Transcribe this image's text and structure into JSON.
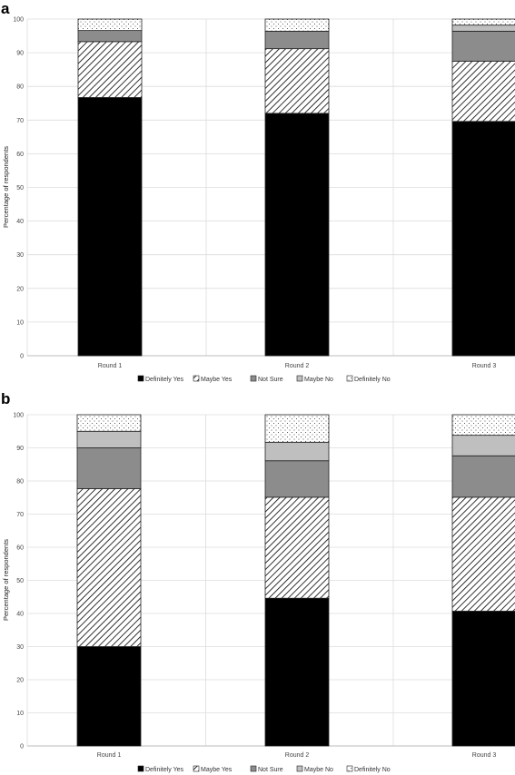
{
  "colors": {
    "definitely_yes": "#000000",
    "maybe_yes": "hatch",
    "not_sure": "#8c8c8c",
    "maybe_no": "#bfbfbf",
    "definitely_no": "dots"
  },
  "chart_data": [
    {
      "panel": "a",
      "type": "bar",
      "stacked": true,
      "categories": [
        "Round 1",
        "Round 2",
        "Round 3"
      ],
      "ylabel": "Percentage of respondents",
      "ylim": [
        0,
        100
      ],
      "yticks": [
        0,
        10,
        20,
        30,
        40,
        50,
        60,
        70,
        80,
        90,
        100
      ],
      "grid": true,
      "legend_position": "bottom",
      "series": [
        {
          "name": "Definitely Yes",
          "key": "definitely_yes",
          "values": [
            76.7,
            72.0,
            69.6
          ]
        },
        {
          "name": "Maybe Yes",
          "key": "maybe_yes",
          "values": [
            16.6,
            19.2,
            17.9
          ]
        },
        {
          "name": "Not Sure",
          "key": "not_sure",
          "values": [
            3.3,
            5.2,
            8.9
          ]
        },
        {
          "name": "Maybe No",
          "key": "maybe_no",
          "values": [
            0.0,
            0.0,
            1.8
          ]
        },
        {
          "name": "Definitely No",
          "key": "definitely_no",
          "values": [
            3.4,
            3.6,
            1.8
          ]
        }
      ]
    },
    {
      "panel": "b",
      "type": "bar",
      "stacked": true,
      "categories": [
        "Round 1",
        "Round 2",
        "Round 3"
      ],
      "ylabel": "Percentage of respondents",
      "ylim": [
        0,
        100
      ],
      "yticks": [
        0,
        10,
        20,
        30,
        40,
        50,
        60,
        70,
        80,
        90,
        100
      ],
      "grid": true,
      "legend_position": "bottom",
      "series": [
        {
          "name": "Definitely Yes",
          "key": "definitely_yes",
          "values": [
            30.0,
            44.6,
            40.7
          ]
        },
        {
          "name": "Maybe Yes",
          "key": "maybe_yes",
          "values": [
            47.7,
            30.5,
            34.4
          ]
        },
        {
          "name": "Not Sure",
          "key": "not_sure",
          "values": [
            12.3,
            11.0,
            12.5
          ]
        },
        {
          "name": "Maybe No",
          "key": "maybe_no",
          "values": [
            5.0,
            5.6,
            6.2
          ]
        },
        {
          "name": "Definitely No",
          "key": "definitely_no",
          "values": [
            5.0,
            8.3,
            6.2
          ]
        }
      ]
    }
  ]
}
